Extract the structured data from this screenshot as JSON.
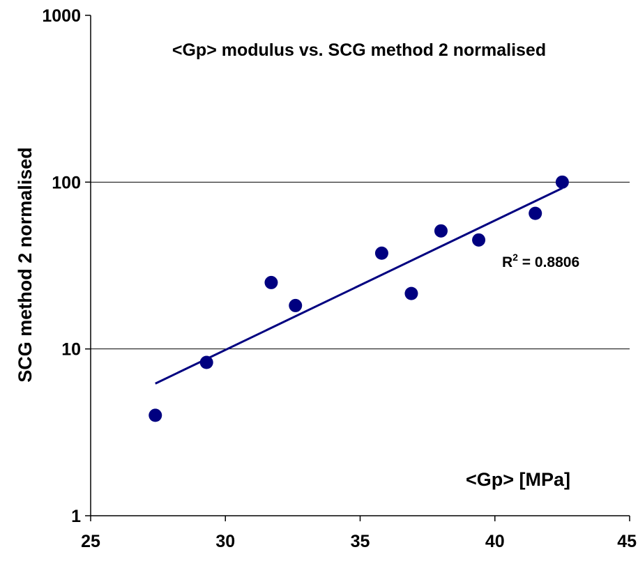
{
  "chart_data": {
    "type": "scatter",
    "title": "<Gp> modulus vs. SCG method 2 normalised",
    "xlabel": "<Gp> [MPa]",
    "ylabel": "SCG method 2 normalised",
    "xlim": [
      25,
      45
    ],
    "ylim": [
      1,
      1000
    ],
    "y_scale": "log",
    "x_ticks": [
      25,
      30,
      35,
      40,
      45
    ],
    "y_ticks": [
      1,
      10,
      100,
      1000
    ],
    "x_tick_labels": [
      "25",
      "30",
      "35",
      "40",
      "45"
    ],
    "y_tick_labels": [
      "1",
      "10",
      "100",
      "1000"
    ],
    "grid": {
      "horizontal_major": true,
      "vertical": false
    },
    "series": [
      {
        "points": [
          [
            27.4,
            4.0
          ],
          [
            29.3,
            8.3
          ],
          [
            31.7,
            25.0
          ],
          [
            32.6,
            18.2
          ],
          [
            35.8,
            37.5
          ],
          [
            36.9,
            21.5
          ],
          [
            38.0,
            51.0
          ],
          [
            39.4,
            45.0
          ],
          [
            41.5,
            65.0
          ],
          [
            42.5,
            100.0
          ]
        ],
        "color": "#000080"
      }
    ],
    "trendline": {
      "type": "exponential",
      "x_range": [
        27.4,
        42.5
      ],
      "y_at_start": 6.2,
      "y_at_end": 92.0,
      "color": "#000080",
      "r2_label": "R",
      "r2_superscript": "2",
      "r2_value": " = 0.8806"
    }
  }
}
